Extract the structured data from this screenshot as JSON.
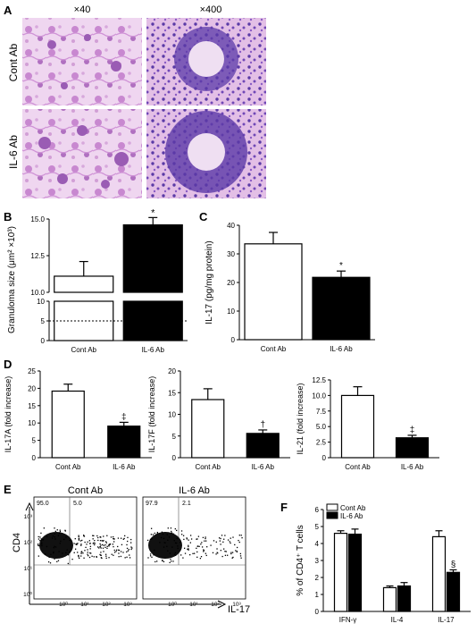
{
  "panelA": {
    "letter": "A",
    "col_labels": [
      "×40",
      "×400"
    ],
    "row_labels": [
      "Cont Ab",
      "IL-6 Ab"
    ]
  },
  "panelE": {
    "letter": "E",
    "plots": [
      {
        "title": "Cont Ab",
        "q_left": "95.0",
        "q_right": "5.0"
      },
      {
        "title": "IL-6 Ab",
        "q_left": "97.9",
        "q_right": "2.1"
      }
    ],
    "y_axis": "CD4",
    "x_axis": "IL-17",
    "y_ticks": [
      "10⁰",
      "10¹",
      "10²",
      "10³"
    ],
    "x_ticks": [
      "10⁰",
      "10¹",
      "10²",
      "10³"
    ]
  },
  "colors": {
    "cont": "#ffffff",
    "il6": "#000000",
    "tissue": "#c060c8"
  },
  "chart_data": [
    {
      "panel": "B",
      "type": "bar",
      "ylabel": "Granuloma size (μm² ×10³)",
      "categories": [
        "Cont Ab",
        "IL-6 Ab"
      ],
      "values": [
        11.1,
        14.6
      ],
      "errors": [
        1.0,
        0.5
      ],
      "annotations": [
        "",
        "*"
      ],
      "broken_axis": true,
      "ylim_lower": [
        0,
        10
      ],
      "ylim_upper": [
        10,
        15
      ],
      "yticks": [
        "0",
        "5",
        "10",
        "10.0",
        "12.5",
        "15.0"
      ],
      "reference_line": 5
    },
    {
      "panel": "C",
      "type": "bar",
      "ylabel": "IL-17 (pg/mg protein)",
      "categories": [
        "Cont Ab",
        "IL-6 Ab"
      ],
      "values": [
        33.5,
        21.8
      ],
      "errors": [
        4.0,
        2.2
      ],
      "annotations": [
        "",
        "*"
      ],
      "ylim": [
        0,
        40
      ],
      "yticks": [
        "0",
        "10",
        "20",
        "30",
        "40"
      ]
    },
    {
      "panel": "D1",
      "type": "bar",
      "ylabel": "IL-17A (fold increase)",
      "categories": [
        "Cont Ab",
        "IL-6 Ab"
      ],
      "values": [
        19.2,
        9.1
      ],
      "errors": [
        2.0,
        1.1
      ],
      "annotations": [
        "",
        "‡"
      ],
      "ylim": [
        0,
        25
      ],
      "yticks": [
        "0",
        "5",
        "10",
        "15",
        "20",
        "25"
      ]
    },
    {
      "panel": "D2",
      "type": "bar",
      "ylabel": "IL-17F (fold increase)",
      "categories": [
        "Cont Ab",
        "IL-6 Ab"
      ],
      "values": [
        13.4,
        5.6
      ],
      "errors": [
        2.5,
        0.8
      ],
      "annotations": [
        "",
        "†"
      ],
      "ylim": [
        0,
        20
      ],
      "yticks": [
        "0",
        "5",
        "10",
        "15",
        "20"
      ]
    },
    {
      "panel": "D3",
      "type": "bar",
      "ylabel": "IL-21 (fold increase)",
      "categories": [
        "Cont Ab",
        "IL-6 Ab"
      ],
      "values": [
        10.0,
        3.2
      ],
      "errors": [
        1.4,
        0.4
      ],
      "annotations": [
        "",
        "‡"
      ],
      "ylim": [
        0,
        12.5
      ],
      "yticks": [
        "0",
        "2.5",
        "5.0",
        "7.5",
        "10.0",
        "12.5"
      ]
    },
    {
      "panel": "F",
      "type": "bar",
      "ylabel": "% of CD4⁺ T cells",
      "categories": [
        "IFN-γ",
        "IL-4",
        "IL-17"
      ],
      "series": [
        {
          "name": "Cont Ab",
          "values": [
            4.6,
            1.4,
            4.4
          ],
          "errors": [
            0.15,
            0.1,
            0.35
          ]
        },
        {
          "name": "IL-6 Ab",
          "values": [
            4.55,
            1.5,
            2.3
          ],
          "errors": [
            0.3,
            0.2,
            0.15
          ]
        }
      ],
      "annotations": [
        "",
        "",
        "§"
      ],
      "ylim": [
        0,
        6
      ],
      "yticks": [
        "0",
        "1",
        "2",
        "3",
        "4",
        "5",
        "6"
      ],
      "legend": "top-left"
    }
  ]
}
